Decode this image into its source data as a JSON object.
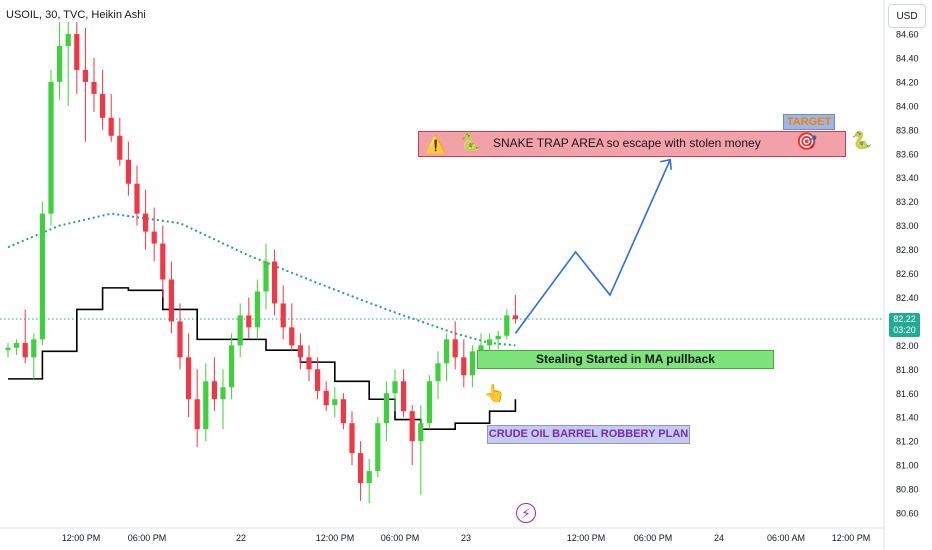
{
  "header": {
    "title": "USOIL, 30, TVC, Heikin Ashi",
    "currency_button": "USD"
  },
  "colors": {
    "up": "#22ab94",
    "up_bright": "#3fd13b",
    "down": "#f23645",
    "ma_dotted": "#2e9a8f",
    "ma_solid": "#000000",
    "arrow": "#2f6fdc",
    "price_line": "#22ab94"
  },
  "chart_data": {
    "type": "candlestick",
    "symbol": "USOIL",
    "interval": "30",
    "source": "TVC",
    "style": "Heikin Ashi",
    "y_ticks": [
      "84.60",
      "84.40",
      "84.20",
      "84.00",
      "83.80",
      "83.60",
      "83.40",
      "83.20",
      "83.00",
      "82.80",
      "82.60",
      "82.40",
      "82.20",
      "82.00",
      "81.80",
      "81.60",
      "81.40",
      "81.20",
      "81.00",
      "80.80",
      "80.60"
    ],
    "x_ticks": [
      "12:00 PM",
      "06:00 PM",
      "22",
      "12:00 PM",
      "06:00 PM",
      "23",
      "12:00 PM",
      "06:00 PM",
      "24",
      "06:00 AM",
      "12:00 PM"
    ],
    "last_price": "82.22",
    "countdown": "03:20",
    "ylim": [
      80.5,
      84.7
    ],
    "candles": [
      {
        "o": 81.96,
        "h": 82.02,
        "l": 81.9,
        "c": 81.98
      },
      {
        "o": 81.98,
        "h": 82.05,
        "l": 81.92,
        "c": 82.02
      },
      {
        "o": 82.02,
        "h": 82.3,
        "l": 81.85,
        "c": 81.9
      },
      {
        "o": 81.9,
        "h": 82.1,
        "l": 81.72,
        "c": 82.05
      },
      {
        "o": 82.05,
        "h": 83.2,
        "l": 82.0,
        "c": 83.1
      },
      {
        "o": 83.1,
        "h": 84.3,
        "l": 83.0,
        "c": 84.2
      },
      {
        "o": 84.2,
        "h": 84.7,
        "l": 84.05,
        "c": 84.5
      },
      {
        "o": 84.5,
        "h": 84.7,
        "l": 84.0,
        "c": 84.6
      },
      {
        "o": 84.6,
        "h": 84.7,
        "l": 84.1,
        "c": 84.3
      },
      {
        "o": 84.3,
        "h": 84.65,
        "l": 83.7,
        "c": 84.2
      },
      {
        "o": 84.2,
        "h": 84.4,
        "l": 83.95,
        "c": 84.1
      },
      {
        "o": 84.1,
        "h": 84.3,
        "l": 83.8,
        "c": 83.9
      },
      {
        "o": 83.9,
        "h": 84.1,
        "l": 83.7,
        "c": 83.75
      },
      {
        "o": 83.75,
        "h": 83.9,
        "l": 83.5,
        "c": 83.55
      },
      {
        "o": 83.55,
        "h": 83.7,
        "l": 83.25,
        "c": 83.35
      },
      {
        "o": 83.35,
        "h": 83.5,
        "l": 83.0,
        "c": 83.1
      },
      {
        "o": 83.1,
        "h": 83.3,
        "l": 82.8,
        "c": 82.95
      },
      {
        "o": 82.95,
        "h": 83.15,
        "l": 82.7,
        "c": 82.85
      },
      {
        "o": 82.85,
        "h": 83.0,
        "l": 82.4,
        "c": 82.55
      },
      {
        "o": 82.55,
        "h": 82.7,
        "l": 82.1,
        "c": 82.2
      },
      {
        "o": 82.2,
        "h": 82.35,
        "l": 81.8,
        "c": 81.9
      },
      {
        "o": 81.9,
        "h": 82.1,
        "l": 81.4,
        "c": 81.55
      },
      {
        "o": 81.55,
        "h": 81.8,
        "l": 81.15,
        "c": 81.3
      },
      {
        "o": 81.3,
        "h": 81.85,
        "l": 81.2,
        "c": 81.7
      },
      {
        "o": 81.7,
        "h": 81.9,
        "l": 81.45,
        "c": 81.55
      },
      {
        "o": 81.55,
        "h": 81.8,
        "l": 81.3,
        "c": 81.65
      },
      {
        "o": 81.65,
        "h": 82.1,
        "l": 81.55,
        "c": 82.0
      },
      {
        "o": 82.0,
        "h": 82.35,
        "l": 81.9,
        "c": 82.25
      },
      {
        "o": 82.25,
        "h": 82.4,
        "l": 82.05,
        "c": 82.15
      },
      {
        "o": 82.15,
        "h": 82.55,
        "l": 82.05,
        "c": 82.45
      },
      {
        "o": 82.45,
        "h": 82.85,
        "l": 82.3,
        "c": 82.7
      },
      {
        "o": 82.7,
        "h": 82.8,
        "l": 82.25,
        "c": 82.35
      },
      {
        "o": 82.35,
        "h": 82.5,
        "l": 82.05,
        "c": 82.15
      },
      {
        "o": 82.15,
        "h": 82.35,
        "l": 81.95,
        "c": 82.0
      },
      {
        "o": 82.0,
        "h": 82.1,
        "l": 81.8,
        "c": 81.9
      },
      {
        "o": 81.9,
        "h": 82.0,
        "l": 81.7,
        "c": 81.8
      },
      {
        "o": 81.8,
        "h": 81.9,
        "l": 81.55,
        "c": 81.62
      },
      {
        "o": 81.62,
        "h": 81.7,
        "l": 81.45,
        "c": 81.5
      },
      {
        "o": 81.5,
        "h": 81.65,
        "l": 81.4,
        "c": 81.55
      },
      {
        "o": 81.55,
        "h": 81.6,
        "l": 81.3,
        "c": 81.35
      },
      {
        "o": 81.35,
        "h": 81.45,
        "l": 81.0,
        "c": 81.1
      },
      {
        "o": 81.1,
        "h": 81.2,
        "l": 80.7,
        "c": 80.85
      },
      {
        "o": 80.85,
        "h": 81.05,
        "l": 80.68,
        "c": 80.95
      },
      {
        "o": 80.95,
        "h": 81.4,
        "l": 80.9,
        "c": 81.35
      },
      {
        "o": 81.35,
        "h": 81.7,
        "l": 81.2,
        "c": 81.6
      },
      {
        "o": 81.6,
        "h": 81.8,
        "l": 81.45,
        "c": 81.7
      },
      {
        "o": 81.7,
        "h": 81.8,
        "l": 81.4,
        "c": 81.45
      },
      {
        "o": 81.45,
        "h": 81.5,
        "l": 81.0,
        "c": 81.2
      },
      {
        "o": 81.2,
        "h": 81.5,
        "l": 80.75,
        "c": 81.35
      },
      {
        "o": 81.35,
        "h": 81.75,
        "l": 81.3,
        "c": 81.7
      },
      {
        "o": 81.7,
        "h": 81.95,
        "l": 81.55,
        "c": 81.85
      },
      {
        "o": 81.85,
        "h": 82.1,
        "l": 81.7,
        "c": 82.05
      },
      {
        "o": 82.05,
        "h": 82.2,
        "l": 81.8,
        "c": 81.9
      },
      {
        "o": 81.9,
        "h": 82.05,
        "l": 81.65,
        "c": 81.75
      },
      {
        "o": 81.75,
        "h": 82.0,
        "l": 81.65,
        "c": 81.95
      },
      {
        "o": 81.95,
        "h": 82.1,
        "l": 81.85,
        "c": 82.0
      },
      {
        "o": 82.0,
        "h": 82.1,
        "l": 81.9,
        "c": 82.05
      },
      {
        "o": 82.05,
        "h": 82.12,
        "l": 81.97,
        "c": 82.08
      },
      {
        "o": 82.08,
        "h": 82.3,
        "l": 82.05,
        "c": 82.25
      },
      {
        "o": 82.25,
        "h": 82.42,
        "l": 82.18,
        "c": 82.22
      }
    ],
    "ma_dotted": [
      [
        0,
        82.82
      ],
      [
        6,
        83.0
      ],
      [
        12,
        83.1
      ],
      [
        20,
        83.02
      ],
      [
        28,
        82.75
      ],
      [
        36,
        82.52
      ],
      [
        44,
        82.3
      ],
      [
        52,
        82.1
      ],
      [
        56,
        82.02
      ],
      [
        59,
        82.0
      ]
    ],
    "ma_solid": [
      [
        0,
        81.72
      ],
      [
        4,
        81.95
      ],
      [
        8,
        82.3
      ],
      [
        11,
        82.48
      ],
      [
        14,
        82.46
      ],
      [
        18,
        82.3
      ],
      [
        22,
        82.05
      ],
      [
        26,
        82.05
      ],
      [
        30,
        81.96
      ],
      [
        34,
        81.86
      ],
      [
        38,
        81.7
      ],
      [
        42,
        81.55
      ],
      [
        45,
        81.38
      ],
      [
        48,
        81.3
      ],
      [
        52,
        81.35
      ],
      [
        56,
        81.45
      ],
      [
        59,
        81.55
      ]
    ],
    "projection_arrow": [
      [
        59,
        82.1
      ],
      [
        66,
        82.78
      ],
      [
        70,
        82.42
      ],
      [
        77,
        83.55
      ]
    ],
    "annotations": {
      "snake_trap": "SNAKE TRAP AREA so escape with stolen money",
      "target": "TARGET",
      "stealing": "Stealing Started in MA pullback",
      "robbery_plan": "CRUDE OIL BARREL ROBBERY PLAN"
    }
  },
  "icons": {
    "warning": "⚠️",
    "snake": "🐍",
    "target": "🎯",
    "pointing_up": "👆",
    "lightning": "⚡"
  }
}
